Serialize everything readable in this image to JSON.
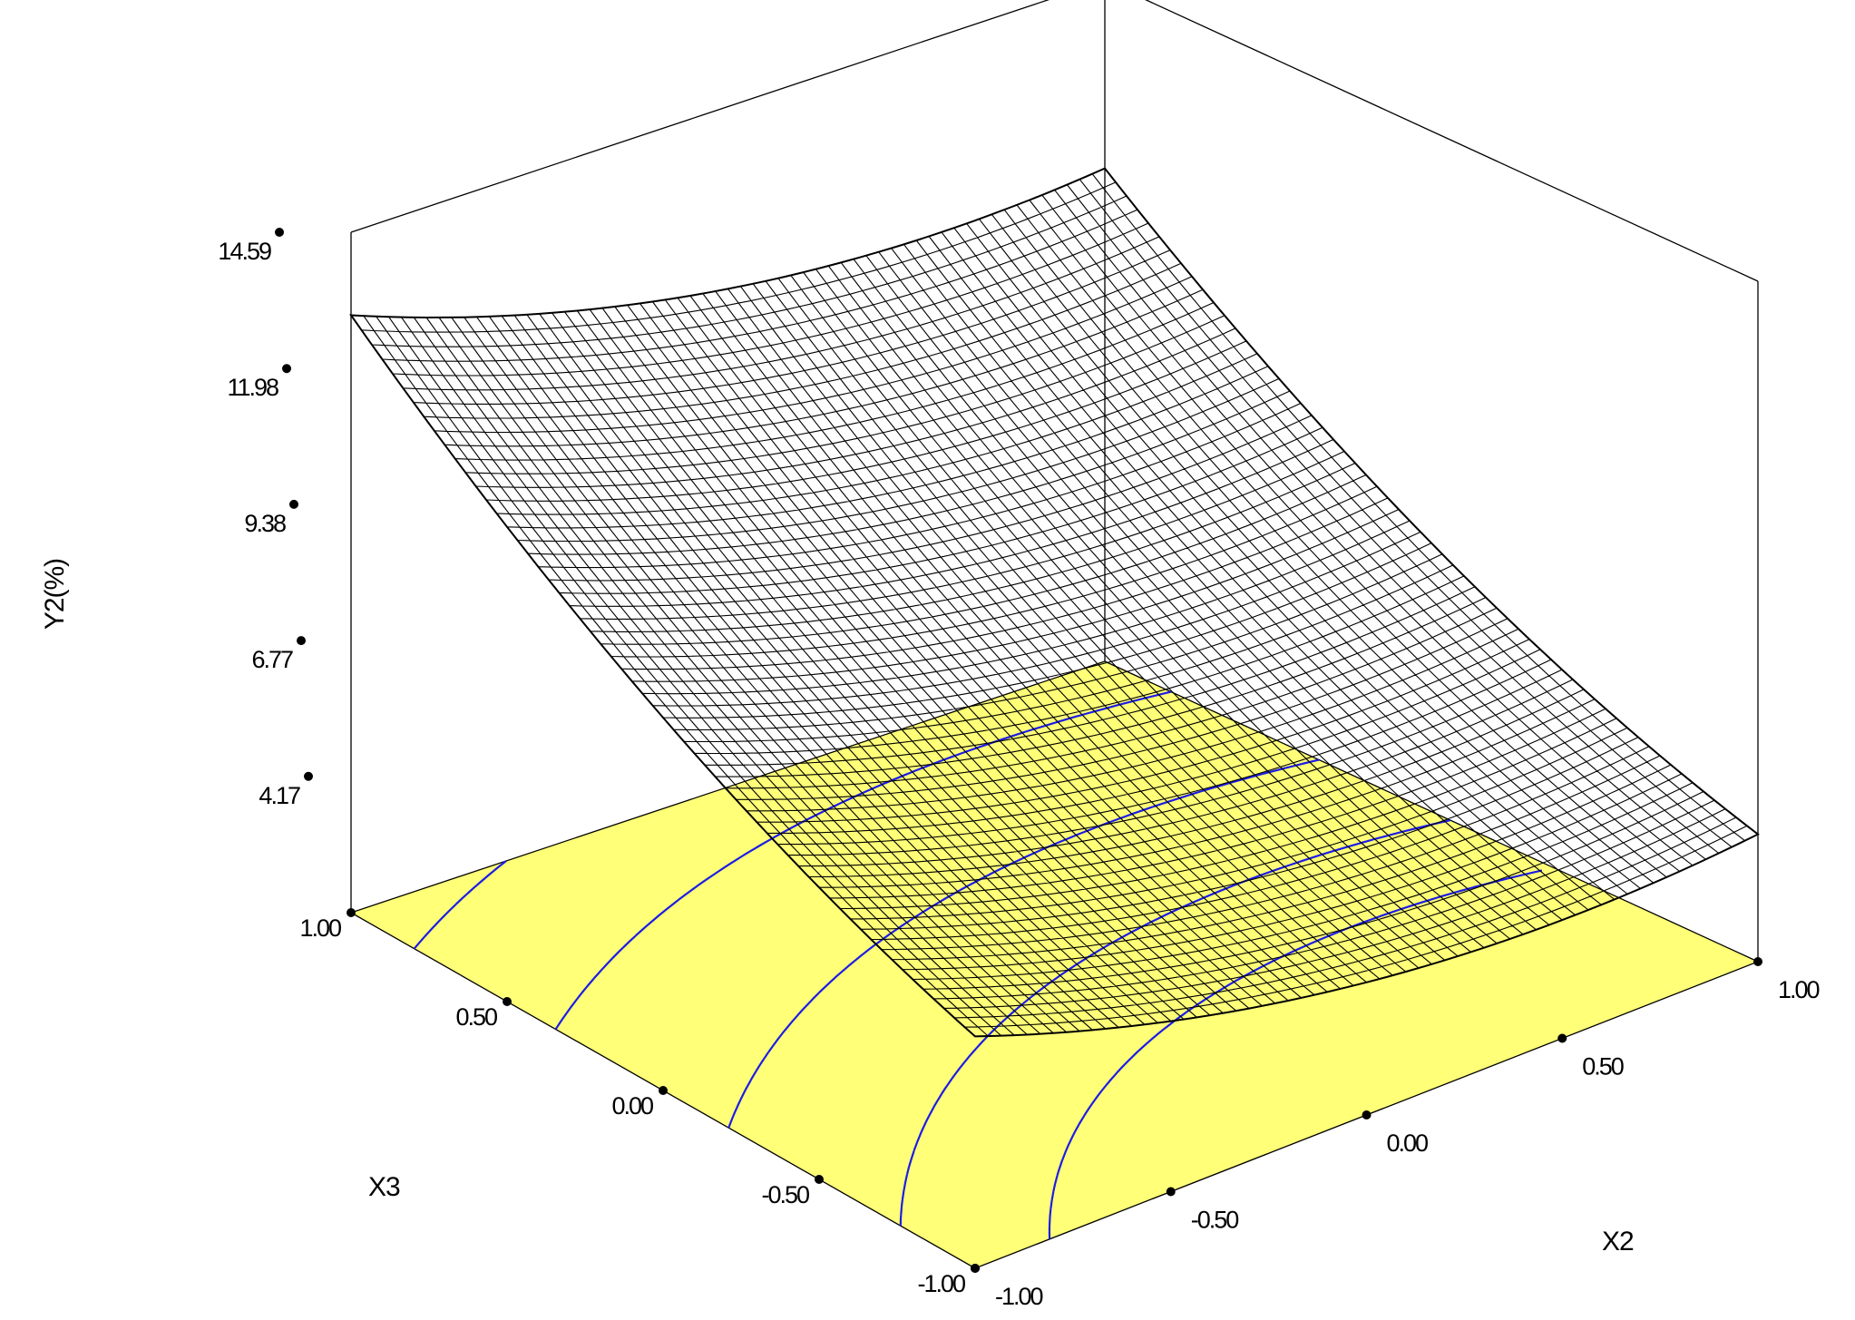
{
  "chart_data": {
    "type": "surface3d",
    "zlabel": "Y2(%)",
    "xlabel": "X2",
    "ylabel": "X3",
    "z_ticks": [
      "4.17",
      "6.77",
      "9.38",
      "11.98",
      "14.59"
    ],
    "z_tick_values": [
      4.17,
      6.77,
      9.38,
      11.98,
      14.59
    ],
    "x_ticks": [
      "-1.00",
      "-0.50",
      "0.00",
      "0.50",
      "1.00"
    ],
    "x_tick_values": [
      -1.0,
      -0.5,
      0.0,
      0.5,
      1.0
    ],
    "y_ticks": [
      "-1.00",
      "-0.50",
      "0.00",
      "0.50",
      "1.00"
    ],
    "y_tick_values": [
      -1.0,
      -0.5,
      0.0,
      0.5,
      1.0
    ],
    "xlim": [
      -1.0,
      1.0
    ],
    "ylim": [
      -1.0,
      1.0
    ],
    "zlim": [
      1.56,
      14.59
    ],
    "surface_corners": [
      {
        "x2": -1.0,
        "x3": 1.0,
        "y2": 13.0
      },
      {
        "x2": 1.0,
        "x3": 1.0,
        "y2": 11.0
      },
      {
        "x2": 1.0,
        "x3": -1.0,
        "y2": 4.0
      }
    ],
    "floor_color": "#FFFF78",
    "contour_color": "#1C1CE6",
    "mesh_color": "#000000"
  }
}
